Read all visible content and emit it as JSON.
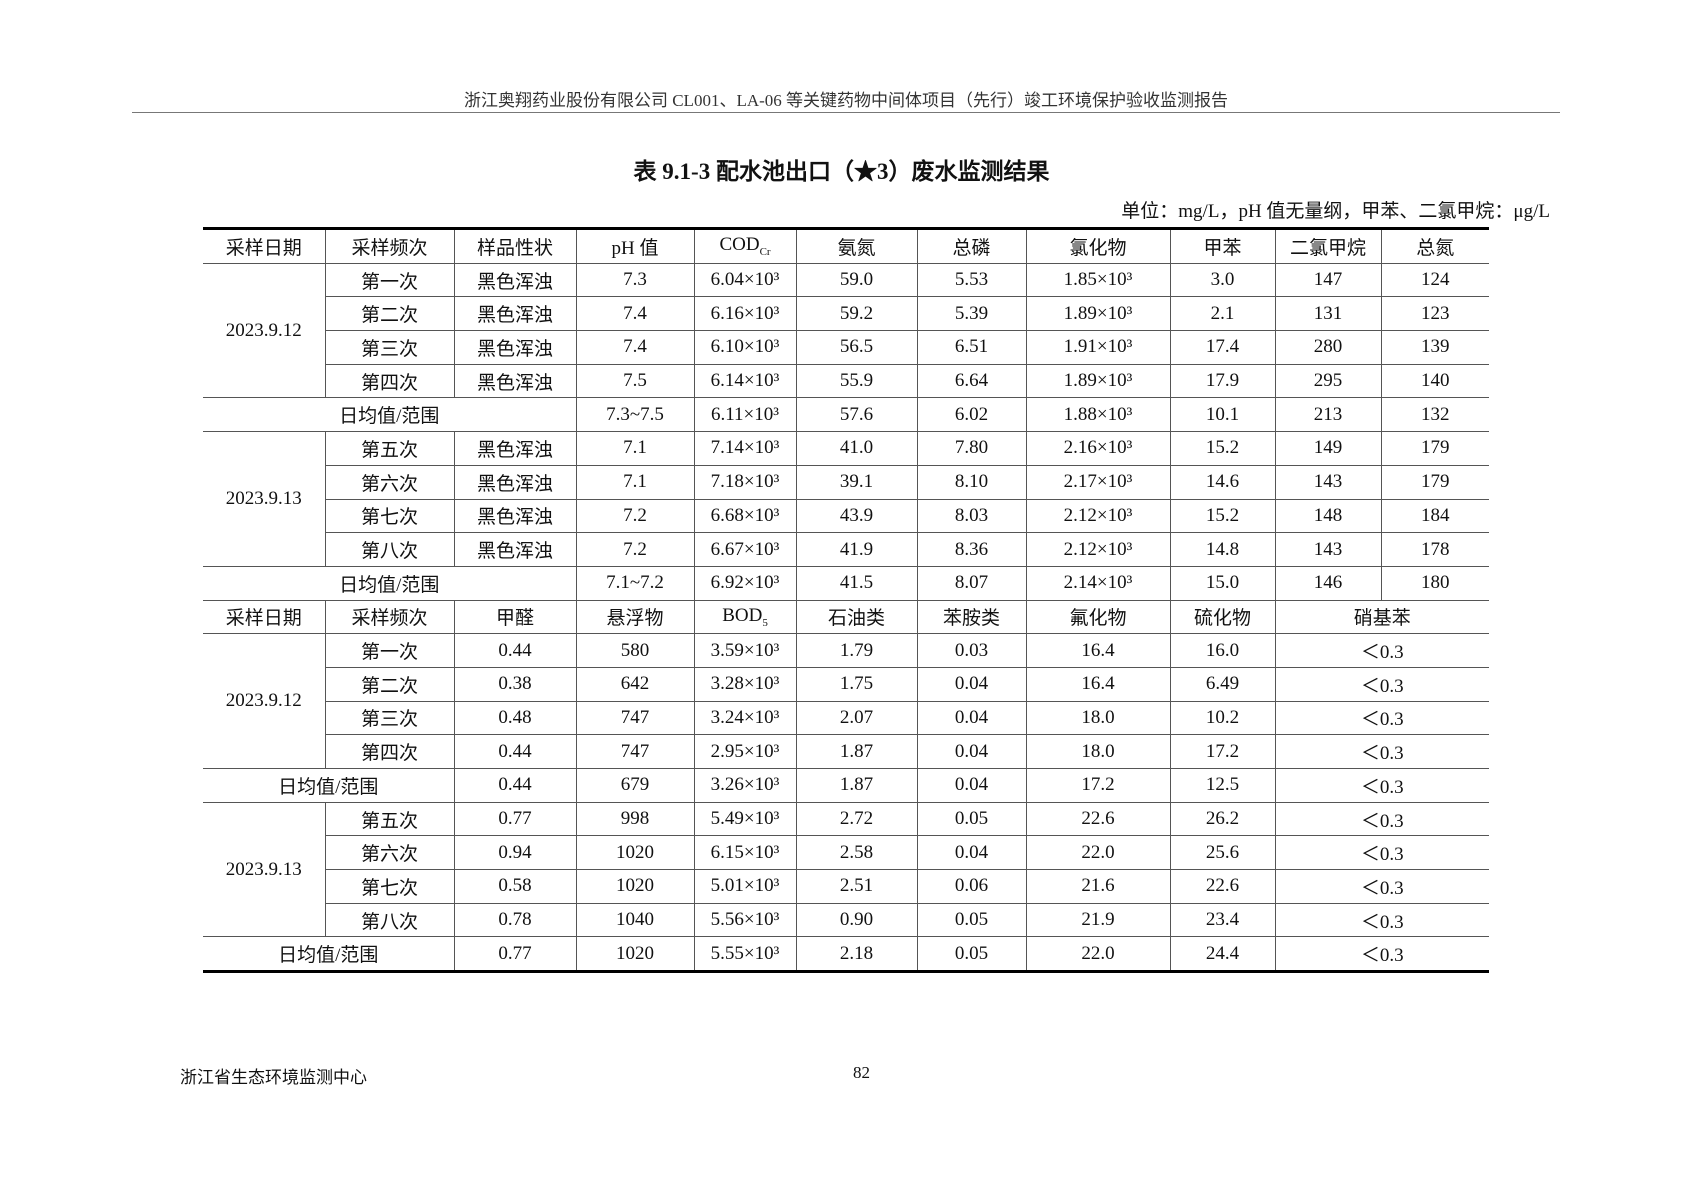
{
  "running_header": "浙江奥翔药业股份有限公司 CL001、LA-06 等关键药物中间体项目（先行）竣工环境保护验收监测报告",
  "title": "表 9.1-3  配水池出口（★3）废水监测结果",
  "unit_note": "单位：mg/L，pH 值无量纲，甲苯、二氯甲烷：μg/L",
  "table1": {
    "headers": [
      "采样日期",
      "采样频次",
      "样品性状",
      "pH 值",
      "COD",
      "氨氮",
      "总磷",
      "氯化物",
      "甲苯",
      "二氯甲烷",
      "总氮"
    ],
    "cod_sub": "Cr",
    "avg_label": "日均值/范围",
    "groups": [
      {
        "date": "2023.9.12",
        "rows": [
          [
            "第一次",
            "黑色浑浊",
            "7.3",
            "6.04×10³",
            "59.0",
            "5.53",
            "1.85×10³",
            "3.0",
            "147",
            "124"
          ],
          [
            "第二次",
            "黑色浑浊",
            "7.4",
            "6.16×10³",
            "59.2",
            "5.39",
            "1.89×10³",
            "2.1",
            "131",
            "123"
          ],
          [
            "第三次",
            "黑色浑浊",
            "7.4",
            "6.10×10³",
            "56.5",
            "6.51",
            "1.91×10³",
            "17.4",
            "280",
            "139"
          ],
          [
            "第四次",
            "黑色浑浊",
            "7.5",
            "6.14×10³",
            "55.9",
            "6.64",
            "1.89×10³",
            "17.9",
            "295",
            "140"
          ]
        ],
        "avg": [
          "7.3~7.5",
          "6.11×10³",
          "57.6",
          "6.02",
          "1.88×10³",
          "10.1",
          "213",
          "132"
        ]
      },
      {
        "date": "2023.9.13",
        "rows": [
          [
            "第五次",
            "黑色浑浊",
            "7.1",
            "7.14×10³",
            "41.0",
            "7.80",
            "2.16×10³",
            "15.2",
            "149",
            "179"
          ],
          [
            "第六次",
            "黑色浑浊",
            "7.1",
            "7.18×10³",
            "39.1",
            "8.10",
            "2.17×10³",
            "14.6",
            "143",
            "179"
          ],
          [
            "第七次",
            "黑色浑浊",
            "7.2",
            "6.68×10³",
            "43.9",
            "8.03",
            "2.12×10³",
            "15.2",
            "148",
            "184"
          ],
          [
            "第八次",
            "黑色浑浊",
            "7.2",
            "6.67×10³",
            "41.9",
            "8.36",
            "2.12×10³",
            "14.8",
            "143",
            "178"
          ]
        ],
        "avg": [
          "7.1~7.2",
          "6.92×10³",
          "41.5",
          "8.07",
          "2.14×10³",
          "15.0",
          "146",
          "180"
        ]
      }
    ]
  },
  "table2": {
    "headers": [
      "采样日期",
      "采样频次",
      "甲醛",
      "悬浮物",
      "BOD",
      "石油类",
      "苯胺类",
      "氟化物",
      "硫化物",
      "硝基苯"
    ],
    "bod_sub": "5",
    "avg_label": "日均值/范围",
    "groups": [
      {
        "date": "2023.9.12",
        "rows": [
          [
            "第一次",
            "0.44",
            "580",
            "3.59×10³",
            "1.79",
            "0.03",
            "16.4",
            "16.0",
            "＜0.3"
          ],
          [
            "第二次",
            "0.38",
            "642",
            "3.28×10³",
            "1.75",
            "0.04",
            "16.4",
            "6.49",
            "＜0.3"
          ],
          [
            "第三次",
            "0.48",
            "747",
            "3.24×10³",
            "2.07",
            "0.04",
            "18.0",
            "10.2",
            "＜0.3"
          ],
          [
            "第四次",
            "0.44",
            "747",
            "2.95×10³",
            "1.87",
            "0.04",
            "18.0",
            "17.2",
            "＜0.3"
          ]
        ],
        "avg": [
          "0.44",
          "679",
          "3.26×10³",
          "1.87",
          "0.04",
          "17.2",
          "12.5",
          "＜0.3"
        ]
      },
      {
        "date": "2023.9.13",
        "rows": [
          [
            "第五次",
            "0.77",
            "998",
            "5.49×10³",
            "2.72",
            "0.05",
            "22.6",
            "26.2",
            "＜0.3"
          ],
          [
            "第六次",
            "0.94",
            "1020",
            "6.15×10³",
            "2.58",
            "0.04",
            "22.0",
            "25.6",
            "＜0.3"
          ],
          [
            "第七次",
            "0.58",
            "1020",
            "5.01×10³",
            "2.51",
            "0.06",
            "21.6",
            "22.6",
            "＜0.3"
          ],
          [
            "第八次",
            "0.78",
            "1040",
            "5.56×10³",
            "0.90",
            "0.05",
            "21.9",
            "23.4",
            "＜0.3"
          ]
        ],
        "avg": [
          "0.77",
          "1020",
          "5.55×10³",
          "2.18",
          "0.05",
          "22.0",
          "24.4",
          "＜0.3"
        ]
      }
    ]
  },
  "footer": {
    "org": "浙江省生态环境监测中心",
    "page": "82"
  }
}
